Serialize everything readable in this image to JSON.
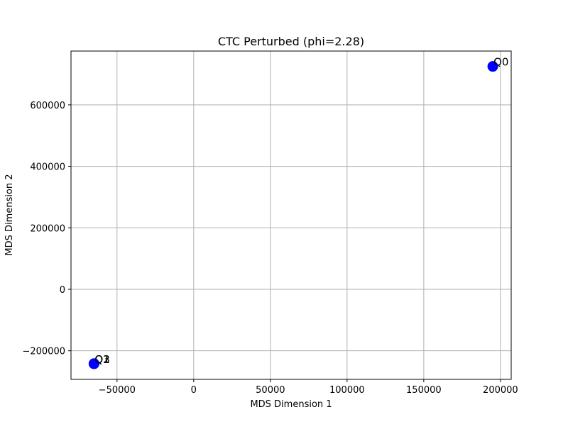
{
  "chart_data": {
    "type": "scatter",
    "title": "CTC Perturbed (phi=2.28)",
    "xlabel": "MDS Dimension 1",
    "ylabel": "MDS Dimension 2",
    "xlim": [
      -80000,
      207000
    ],
    "ylim": [
      -293000,
      775000
    ],
    "x_ticks": [
      -50000,
      0,
      50000,
      100000,
      150000,
      200000
    ],
    "x_tick_labels": [
      "−50000",
      "0",
      "50000",
      "100000",
      "150000",
      "200000"
    ],
    "y_ticks": [
      -200000,
      0,
      200000,
      400000,
      600000
    ],
    "y_tick_labels": [
      "−200000",
      "0",
      "200000",
      "400000",
      "600000"
    ],
    "grid": true,
    "point_color": "#0000ff",
    "points": [
      {
        "label": "Q0",
        "x": 195000,
        "y": 725000
      },
      {
        "label": "Q1",
        "x": -65000,
        "y": -242000
      },
      {
        "label": "Q2",
        "x": -65000,
        "y": -242000
      },
      {
        "label": "Q3",
        "x": -65000,
        "y": -242000
      }
    ]
  }
}
